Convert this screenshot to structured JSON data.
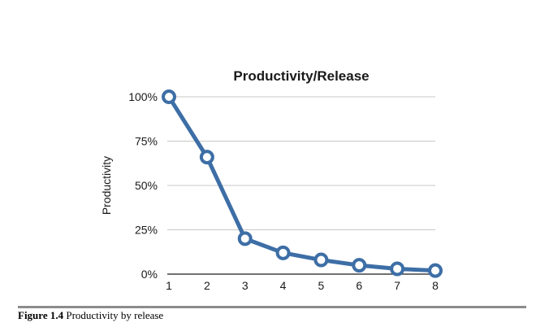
{
  "chart_data": {
    "type": "line",
    "title": "Productivity/Release",
    "xlabel": "",
    "ylabel": "Productivity",
    "x": [
      1,
      2,
      3,
      4,
      5,
      6,
      7,
      8
    ],
    "series": [
      {
        "values": [
          100,
          66,
          20,
          12,
          8,
          5,
          3,
          2
        ]
      }
    ],
    "ylim": [
      0,
      100
    ],
    "yticks": [
      "0%",
      "25%",
      "50%",
      "75%",
      "100%"
    ],
    "xticks": [
      "1",
      "2",
      "3",
      "4",
      "5",
      "6",
      "7",
      "8"
    ],
    "grid": true,
    "legend": "none",
    "colors": {
      "line": "#3d6ea6",
      "marker_fill": "#ffffff",
      "grid": "#c8c8c8",
      "axis": "#1a1a1a"
    }
  },
  "caption": {
    "label": "Figure 1.4",
    "text": " Productivity by release"
  }
}
